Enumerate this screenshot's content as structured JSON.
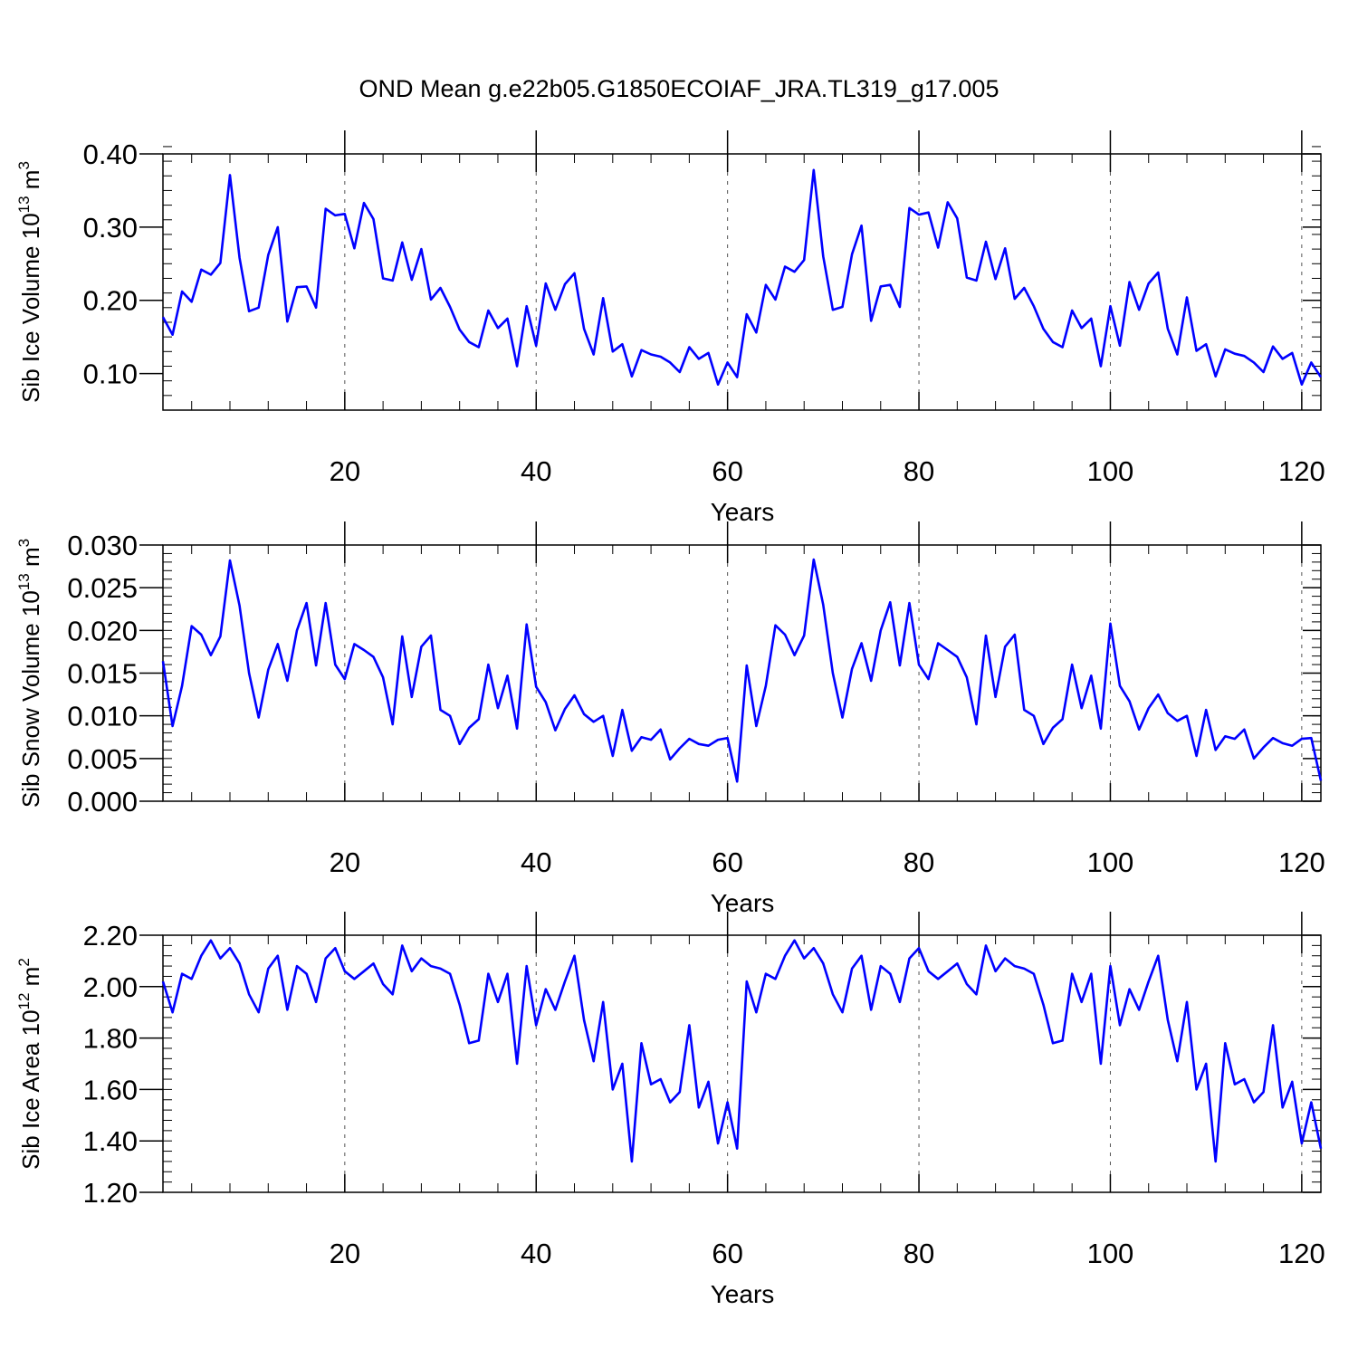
{
  "title": "OND Mean g.e22b05.G1850ECOIAF_JRA.TL319_g17.005",
  "line_color": "#0000ff",
  "chart_data": [
    {
      "type": "line",
      "xlabel": "Years",
      "ylabel": "Sib Ice Volume 10",
      "ylabel_exp": "13",
      "ylabel_unit": " m",
      "ylabel_unit_exp": "3",
      "xlim": [
        1,
        122
      ],
      "ylim": [
        0.05,
        0.4
      ],
      "xticks": [
        20,
        40,
        60,
        80,
        100,
        120
      ],
      "xtick_labels": [
        "20",
        "40",
        "60",
        "80",
        "100",
        "120"
      ],
      "yticks": [
        0.1,
        0.2,
        0.3,
        0.4
      ],
      "ytick_labels": [
        "0.10",
        "0.20",
        "0.30",
        "0.40"
      ],
      "y_minor_step": 0.02,
      "x_minor_step": 4,
      "grid": "vertical dashed at major x ticks",
      "series": [
        {
          "name": "Sib Ice Volume",
          "x_start": 1,
          "values": [
            0.177,
            0.153,
            0.212,
            0.198,
            0.242,
            0.235,
            0.251,
            0.371,
            0.258,
            0.185,
            0.19,
            0.262,
            0.3,
            0.171,
            0.218,
            0.219,
            0.19,
            0.325,
            0.316,
            0.318,
            0.271,
            0.333,
            0.311,
            0.23,
            0.227,
            0.279,
            0.228,
            0.27,
            0.201,
            0.217,
            0.191,
            0.16,
            0.143,
            0.136,
            0.186,
            0.162,
            0.175,
            0.11,
            0.192,
            0.138,
            0.223,
            0.187,
            0.222,
            0.237,
            0.161,
            0.126,
            0.203,
            0.13,
            0.14,
            0.096,
            0.132,
            0.126,
            0.123,
            0.115,
            0.102,
            0.136,
            0.12,
            0.128,
            0.085,
            0.115,
            0.095,
            0.181,
            0.156,
            0.221,
            0.201,
            0.246,
            0.239,
            0.255,
            0.378,
            0.26,
            0.187,
            0.191,
            0.263,
            0.302,
            0.172,
            0.219,
            0.221,
            0.191,
            0.326,
            0.317,
            0.32,
            0.272,
            0.334,
            0.312,
            0.231,
            0.227,
            0.28,
            0.229,
            0.271,
            0.202,
            0.217,
            0.192,
            0.161,
            0.143,
            0.136,
            0.186,
            0.162,
            0.175,
            0.11,
            0.192,
            0.138,
            0.225,
            0.187,
            0.223,
            0.238,
            0.161,
            0.126,
            0.204,
            0.131,
            0.14,
            0.096,
            0.133,
            0.127,
            0.124,
            0.115,
            0.102,
            0.137,
            0.12,
            0.128,
            0.085,
            0.115,
            0.095
          ]
        }
      ]
    },
    {
      "type": "line",
      "xlabel": "Years",
      "ylabel": "Sib Snow Volume 10",
      "ylabel_exp": "13",
      "ylabel_unit": " m",
      "ylabel_unit_exp": "3",
      "xlim": [
        1,
        122
      ],
      "ylim": [
        0.0,
        0.03
      ],
      "xticks": [
        20,
        40,
        60,
        80,
        100,
        120
      ],
      "xtick_labels": [
        "20",
        "40",
        "60",
        "80",
        "100",
        "120"
      ],
      "yticks": [
        0.0,
        0.005,
        0.01,
        0.015,
        0.02,
        0.025,
        0.03
      ],
      "ytick_labels": [
        "0.000",
        "0.005",
        "0.010",
        "0.015",
        "0.020",
        "0.025",
        "0.030"
      ],
      "y_minor_step": 0.001,
      "x_minor_step": 4,
      "grid": "vertical dashed at major x ticks",
      "series": [
        {
          "name": "Sib Snow Volume",
          "x_start": 1,
          "values": [
            0.0164,
            0.0088,
            0.0135,
            0.0205,
            0.0195,
            0.0171,
            0.0193,
            0.0282,
            0.0229,
            0.015,
            0.0098,
            0.0154,
            0.0184,
            0.0141,
            0.02,
            0.0232,
            0.0159,
            0.0232,
            0.016,
            0.0143,
            0.0184,
            0.0177,
            0.0169,
            0.0145,
            0.009,
            0.0193,
            0.0122,
            0.0181,
            0.0194,
            0.0107,
            0.01,
            0.0067,
            0.0086,
            0.0096,
            0.016,
            0.0109,
            0.0147,
            0.0085,
            0.0207,
            0.0134,
            0.0116,
            0.0083,
            0.0108,
            0.0124,
            0.0102,
            0.0093,
            0.01,
            0.0053,
            0.0107,
            0.0059,
            0.0075,
            0.0072,
            0.0084,
            0.0049,
            0.0062,
            0.0073,
            0.0067,
            0.0065,
            0.0072,
            0.0074,
            0.0023,
            0.0159,
            0.0088,
            0.0135,
            0.0206,
            0.0195,
            0.0171,
            0.0194,
            0.0283,
            0.023,
            0.015,
            0.0098,
            0.0155,
            0.0185,
            0.0141,
            0.02,
            0.0233,
            0.0159,
            0.0232,
            0.016,
            0.0143,
            0.0185,
            0.0177,
            0.0169,
            0.0145,
            0.009,
            0.0194,
            0.0122,
            0.0181,
            0.0195,
            0.0107,
            0.01,
            0.0067,
            0.0086,
            0.0096,
            0.016,
            0.0109,
            0.0147,
            0.0085,
            0.0208,
            0.0135,
            0.0117,
            0.0084,
            0.0109,
            0.0125,
            0.0103,
            0.0094,
            0.01,
            0.0053,
            0.0107,
            0.006,
            0.0076,
            0.0073,
            0.0084,
            0.005,
            0.0063,
            0.0074,
            0.0068,
            0.0065,
            0.0073,
            0.0074,
            0.0024
          ]
        }
      ]
    },
    {
      "type": "line",
      "xlabel": "Years",
      "ylabel": "Sib Ice Area 10",
      "ylabel_exp": "12",
      "ylabel_unit": " m",
      "ylabel_unit_exp": "2",
      "xlim": [
        1,
        122
      ],
      "ylim": [
        1.2,
        2.2
      ],
      "xticks": [
        20,
        40,
        60,
        80,
        100,
        120
      ],
      "xtick_labels": [
        "20",
        "40",
        "60",
        "80",
        "100",
        "120"
      ],
      "yticks": [
        1.2,
        1.4,
        1.6,
        1.8,
        2.0,
        2.2
      ],
      "ytick_labels": [
        "1.20",
        "1.40",
        "1.60",
        "1.80",
        "2.00",
        "2.20"
      ],
      "y_minor_step": 0.04,
      "x_minor_step": 4,
      "grid": "vertical dashed at major x ticks",
      "series": [
        {
          "name": "Sib Ice Area",
          "x_start": 1,
          "values": [
            2.02,
            1.9,
            2.05,
            2.03,
            2.12,
            2.18,
            2.11,
            2.15,
            2.09,
            1.97,
            1.9,
            2.07,
            2.12,
            1.91,
            2.08,
            2.05,
            1.94,
            2.11,
            2.15,
            2.06,
            2.03,
            2.06,
            2.09,
            2.01,
            1.97,
            2.16,
            2.06,
            2.11,
            2.08,
            2.07,
            2.05,
            1.93,
            1.78,
            1.79,
            2.05,
            1.94,
            2.05,
            1.7,
            2.08,
            1.85,
            1.99,
            1.91,
            2.02,
            2.12,
            1.87,
            1.71,
            1.94,
            1.6,
            1.7,
            1.32,
            1.78,
            1.62,
            1.64,
            1.55,
            1.59,
            1.85,
            1.53,
            1.63,
            1.39,
            1.55,
            1.37,
            2.02,
            1.9,
            2.05,
            2.03,
            2.12,
            2.18,
            2.11,
            2.15,
            2.09,
            1.97,
            1.9,
            2.07,
            2.12,
            1.91,
            2.08,
            2.05,
            1.94,
            2.11,
            2.15,
            2.06,
            2.03,
            2.06,
            2.09,
            2.01,
            1.97,
            2.16,
            2.06,
            2.11,
            2.08,
            2.07,
            2.05,
            1.93,
            1.78,
            1.79,
            2.05,
            1.94,
            2.05,
            1.7,
            2.08,
            1.85,
            1.99,
            1.91,
            2.02,
            2.12,
            1.87,
            1.71,
            1.94,
            1.6,
            1.7,
            1.32,
            1.78,
            1.62,
            1.64,
            1.55,
            1.59,
            1.85,
            1.53,
            1.63,
            1.39,
            1.55,
            1.37
          ]
        }
      ]
    }
  ]
}
